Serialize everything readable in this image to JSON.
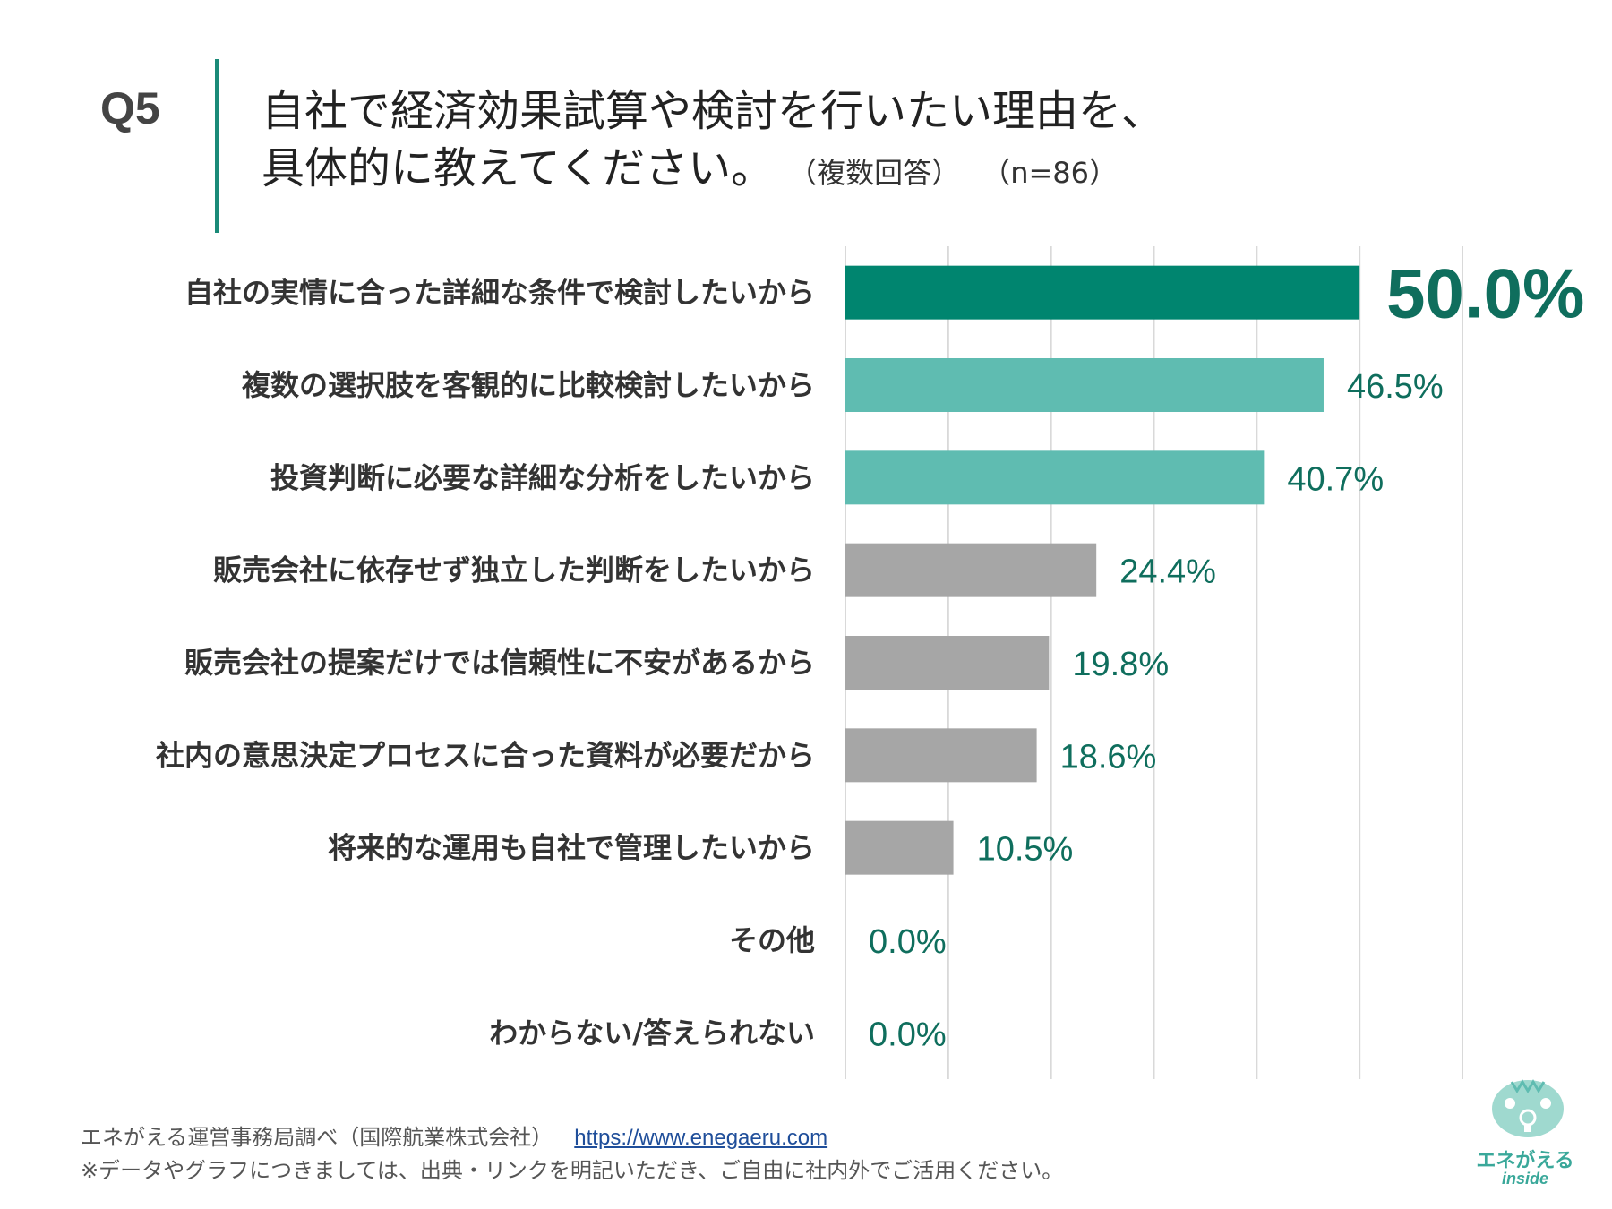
{
  "header": {
    "question_label": "Q5",
    "title_line1": "自社で経済効果試算や検討を行いたい理由を、",
    "title_line2": "具体的に教えてください。",
    "note_multi": "（複数回答）",
    "note_n": "（n=86）"
  },
  "colors": {
    "highlight": "#00856f",
    "teal": "#5fbcb1",
    "gray": "#a6a6a6",
    "value_text": "#0f6e5d",
    "grid": "#d9d9d9"
  },
  "chart_data": {
    "type": "bar",
    "orientation": "horizontal",
    "title": "自社で経済効果試算や検討を行いたい理由を、具体的に教えてください。",
    "xlabel": "",
    "ylabel": "",
    "xlim": [
      0,
      60
    ],
    "gridlines": true,
    "categories": [
      "自社の実情に合った詳細な条件で検討したいから",
      "複数の選択肢を客観的に比較検討したいから",
      "投資判断に必要な詳細な分析をしたいから",
      "販売会社に依存せず独立した判断をしたいから",
      "販売会社の提案だけでは信頼性に不安があるから",
      "社内の意思決定プロセスに合った資料が必要だから",
      "将来的な運用も自社で管理したいから",
      "その他",
      "わからない/答えられない"
    ],
    "values": [
      50.0,
      46.5,
      40.7,
      24.4,
      19.8,
      18.6,
      10.5,
      0.0,
      0.0
    ],
    "value_labels": [
      "50.0%",
      "46.5%",
      "40.7%",
      "24.4%",
      "19.8%",
      "18.6%",
      "10.5%",
      "0.0%",
      "0.0%"
    ],
    "color_groups": [
      "highlight",
      "teal",
      "teal",
      "gray",
      "gray",
      "gray",
      "gray",
      "gray",
      "gray"
    ]
  },
  "footer": {
    "source": "エネがえる運営事務局調べ（国際航業株式会社）",
    "url": "https://www.enegaeru.com",
    "note": "※データやグラフにつきましては、出典・リンクを明記いただき、ご自由に社内外でご活用ください。"
  },
  "logo": {
    "name": "エネがえる",
    "sub": "inside"
  }
}
